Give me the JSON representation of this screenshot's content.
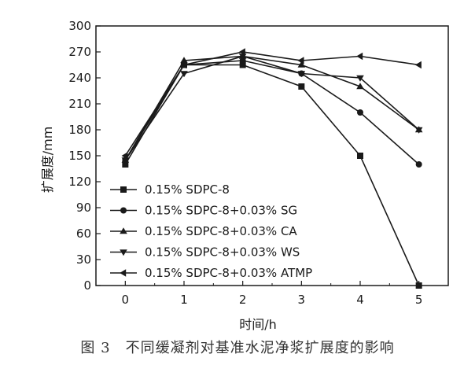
{
  "caption": "图 3　不同缓凝剂对基准水泥净浆扩展度的影响",
  "chart_data": {
    "type": "line",
    "title": "",
    "xlabel": "时间/h",
    "ylabel": "扩展度/mm",
    "xlim": [
      -0.5,
      5.5
    ],
    "ylim": [
      0,
      300
    ],
    "xticks": [
      0,
      1,
      2,
      3,
      4,
      5
    ],
    "yticks": [
      0,
      30,
      60,
      90,
      120,
      150,
      180,
      210,
      240,
      270,
      300
    ],
    "grid": false,
    "legend_position": "lower-left",
    "line_color": "#1a1a1a",
    "x": [
      0,
      1,
      2,
      3,
      4,
      5
    ],
    "series": [
      {
        "name": "0.15% SDPC-8",
        "marker": "square",
        "values": [
          140,
          255,
          255,
          230,
          150,
          0
        ]
      },
      {
        "name": "0.15% SDPC-8+0.03% SG",
        "marker": "circle",
        "values": [
          145,
          255,
          260,
          245,
          200,
          140
        ]
      },
      {
        "name": "0.15% SDPC-8+0.03% CA",
        "marker": "triangle-up",
        "values": [
          145,
          260,
          265,
          255,
          230,
          180
        ]
      },
      {
        "name": "0.15% SDPC-8+0.03% WS",
        "marker": "triangle-down",
        "values": [
          145,
          245,
          265,
          245,
          240,
          180
        ]
      },
      {
        "name": "0.15% SDPC-8+0.03% ATMP",
        "marker": "triangle-left",
        "values": [
          150,
          255,
          270,
          260,
          265,
          255
        ]
      }
    ]
  }
}
